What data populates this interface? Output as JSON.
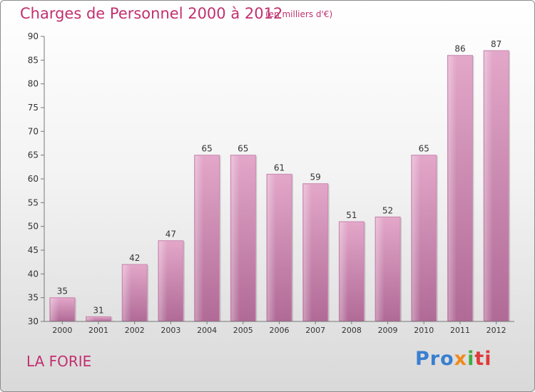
{
  "header": {
    "title": "Charges de Personnel 2000 à 2012",
    "subtitle": "(en milliers d'€)"
  },
  "footer": {
    "commune": "LA FORIE",
    "logo_text": "Proxiti",
    "logo_colors": [
      "#3a7fd0",
      "#f08a1c",
      "#3fae3f",
      "#e03a3a"
    ]
  },
  "chart_data": {
    "type": "bar",
    "categories": [
      "2000",
      "2001",
      "2002",
      "2003",
      "2004",
      "2005",
      "2006",
      "2007",
      "2008",
      "2009",
      "2010",
      "2011",
      "2012"
    ],
    "values": [
      35,
      31,
      42,
      47,
      65,
      65,
      61,
      59,
      51,
      52,
      65,
      86,
      87
    ],
    "ylim": [
      30,
      90
    ],
    "yticks": [
      30,
      35,
      40,
      45,
      50,
      55,
      60,
      65,
      70,
      75,
      80,
      85,
      90
    ],
    "grid": false,
    "bar_color": "#d88fb8",
    "bar_color_dark": "#b86a99",
    "text_color": "#c1306f"
  }
}
